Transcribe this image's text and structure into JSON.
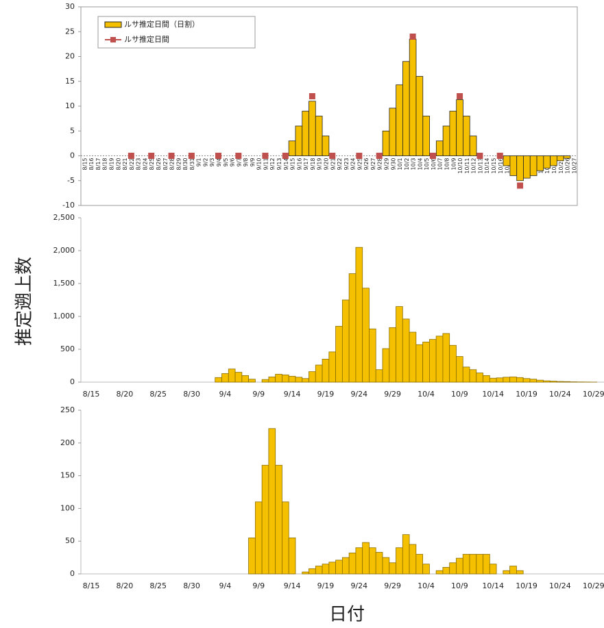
{
  "axis_labels": {
    "y": "推定遡上数",
    "x": "日付"
  },
  "chart_data": [
    {
      "type": "bar",
      "categories": [
        "8/15",
        "8/16",
        "8/17",
        "8/18",
        "8/19",
        "8/20",
        "8/21",
        "8/22",
        "8/23",
        "8/24",
        "8/25",
        "8/26",
        "8/27",
        "8/28",
        "8/29",
        "8/30",
        "8/31",
        "9/1",
        "9/2",
        "9/3",
        "9/4",
        "9/5",
        "9/6",
        "9/7",
        "9/8",
        "9/9",
        "9/10",
        "9/11",
        "9/12",
        "9/13",
        "9/14",
        "9/15",
        "9/16",
        "9/17",
        "9/18",
        "9/19",
        "9/20",
        "9/21",
        "9/22",
        "9/23",
        "9/24",
        "9/25",
        "9/26",
        "9/27",
        "9/28",
        "9/29",
        "9/30",
        "10/1",
        "10/2",
        "10/3",
        "10/4",
        "10/5",
        "10/6",
        "10/7",
        "10/8",
        "10/9",
        "10/10",
        "10/11",
        "10/12",
        "10/13",
        "10/14",
        "10/15",
        "10/16",
        "10/17",
        "10/18",
        "10/19",
        "10/20",
        "10/21",
        "10/22",
        "10/23",
        "10/24",
        "10/25",
        "10/26",
        "10/27"
      ],
      "series": [
        {
          "name": "ルサ推定日間（日割）",
          "kind": "bar",
          "color": "#f5c000",
          "values": [
            null,
            null,
            null,
            null,
            null,
            null,
            null,
            null,
            null,
            null,
            null,
            null,
            null,
            null,
            null,
            null,
            null,
            null,
            null,
            null,
            null,
            null,
            null,
            null,
            null,
            null,
            null,
            null,
            null,
            null,
            null,
            3,
            6,
            9,
            11,
            8,
            4,
            null,
            null,
            null,
            null,
            null,
            null,
            null,
            null,
            5,
            9.6,
            14.3,
            19,
            23.5,
            16,
            8,
            null,
            3,
            6,
            9,
            11.3,
            8,
            4,
            null,
            null,
            null,
            null,
            -2,
            -4,
            -5,
            -4.5,
            -4,
            -3,
            -2.5,
            -2,
            -1,
            -0.5,
            null
          ]
        },
        {
          "name": "ルサ推定日間",
          "kind": "marker",
          "color": "#c0504d",
          "values": [
            null,
            null,
            null,
            null,
            null,
            null,
            null,
            0,
            null,
            null,
            0,
            null,
            null,
            0,
            null,
            null,
            0,
            null,
            null,
            null,
            0,
            null,
            null,
            0,
            null,
            null,
            null,
            0,
            null,
            null,
            0,
            null,
            null,
            null,
            12,
            null,
            null,
            0,
            null,
            null,
            null,
            0,
            null,
            null,
            0,
            null,
            null,
            null,
            null,
            24,
            null,
            null,
            0,
            null,
            null,
            null,
            12,
            null,
            null,
            0,
            null,
            null,
            0,
            null,
            null,
            -6,
            null,
            null,
            null,
            null,
            null,
            null,
            null,
            null
          ]
        }
      ],
      "ylim": [
        -10,
        30
      ],
      "yticks": [
        -10,
        -5,
        0,
        5,
        10,
        15,
        20,
        25,
        30
      ],
      "legend": "upper left",
      "grid": false
    },
    {
      "type": "bar",
      "color": "#f5c000",
      "categories": [
        "8/15",
        null,
        null,
        null,
        null,
        "8/20",
        null,
        null,
        null,
        null,
        "8/25",
        null,
        null,
        null,
        null,
        "8/30",
        null,
        null,
        null,
        null,
        "9/4",
        null,
        null,
        null,
        null,
        "9/9",
        null,
        null,
        null,
        null,
        "9/14",
        null,
        null,
        null,
        null,
        "9/19",
        null,
        null,
        null,
        null,
        "9/24",
        null,
        null,
        null,
        null,
        "9/29",
        null,
        null,
        null,
        null,
        "10/4",
        null,
        null,
        null,
        null,
        "10/9",
        null,
        null,
        null,
        null,
        "10/14",
        null,
        null,
        null,
        null,
        "10/19",
        null,
        null,
        null,
        null,
        "10/24",
        null,
        null,
        null,
        null,
        "10/29"
      ],
      "values": [
        0,
        0,
        0,
        0,
        0,
        0,
        0,
        0,
        0,
        0,
        0,
        0,
        0,
        0,
        0,
        0,
        0,
        0,
        0,
        70,
        130,
        200,
        150,
        100,
        45,
        0,
        40,
        80,
        120,
        110,
        90,
        75,
        55,
        160,
        260,
        350,
        460,
        850,
        1250,
        1650,
        2050,
        1430,
        810,
        190,
        510,
        830,
        1150,
        960,
        760,
        570,
        610,
        650,
        700,
        740,
        560,
        390,
        230,
        190,
        140,
        100,
        60,
        65,
        75,
        80,
        70,
        55,
        45,
        30,
        20,
        15,
        10,
        8,
        5,
        3,
        2,
        1
      ],
      "ylim": [
        0,
        2500
      ],
      "yticks": [
        0,
        500,
        {
          "value": 1000,
          "label": "1,000"
        },
        {
          "value": 1500,
          "label": "1,500"
        },
        {
          "value": 2000,
          "label": "2,000"
        },
        {
          "value": 2500,
          "label": "2,500"
        }
      ],
      "grid": false
    },
    {
      "type": "bar",
      "color": "#f5c000",
      "categories": [
        "8/15",
        null,
        null,
        null,
        null,
        "8/20",
        null,
        null,
        null,
        null,
        "8/25",
        null,
        null,
        null,
        null,
        "8/30",
        null,
        null,
        null,
        null,
        "9/4",
        null,
        null,
        null,
        null,
        "9/9",
        null,
        null,
        null,
        null,
        "9/14",
        null,
        null,
        null,
        null,
        "9/19",
        null,
        null,
        null,
        null,
        "9/24",
        null,
        null,
        null,
        null,
        "9/29",
        null,
        null,
        null,
        null,
        "10/4",
        null,
        null,
        null,
        null,
        "10/9",
        null,
        null,
        null,
        null,
        "10/14",
        null,
        null,
        null,
        null,
        "10/19",
        null,
        null,
        null,
        null,
        "10/24",
        null,
        null,
        null,
        null,
        "10/29"
      ],
      "values": [
        0,
        0,
        0,
        0,
        0,
        0,
        0,
        0,
        0,
        0,
        0,
        0,
        0,
        0,
        0,
        0,
        0,
        0,
        0,
        0,
        0,
        0,
        0,
        0,
        55,
        110,
        166,
        222,
        166,
        110,
        55,
        0,
        3,
        8,
        12,
        15,
        18,
        21,
        25,
        32,
        40,
        48,
        40,
        33,
        25,
        17,
        40,
        60,
        45,
        30,
        15,
        0,
        5,
        10,
        17,
        24,
        30,
        30,
        30,
        30,
        15,
        0,
        5,
        12,
        5,
        0,
        0,
        0,
        0,
        0,
        0,
        0,
        0,
        0,
        0,
        0
      ],
      "ylim": [
        0,
        250
      ],
      "yticks": [
        0,
        50,
        100,
        150,
        200,
        250
      ],
      "grid": false
    }
  ]
}
